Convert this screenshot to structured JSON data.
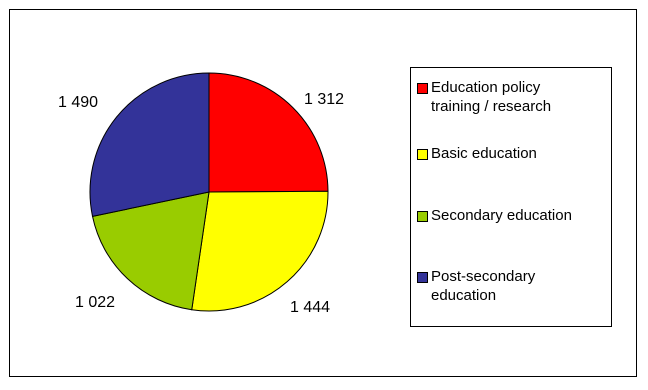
{
  "chart_data": {
    "type": "pie",
    "categories": [
      "Education policy\ntraining / research",
      "Basic education",
      "Secondary education",
      "Post-secondary\neducation"
    ],
    "values": [
      1312,
      1444,
      1022,
      1490
    ],
    "value_labels": [
      "1 312",
      "1 444",
      "1 022",
      "1 490"
    ],
    "colors": [
      "#FF0000",
      "#FFFF00",
      "#99CC00",
      "#333399"
    ],
    "legend": "right",
    "title": ""
  }
}
